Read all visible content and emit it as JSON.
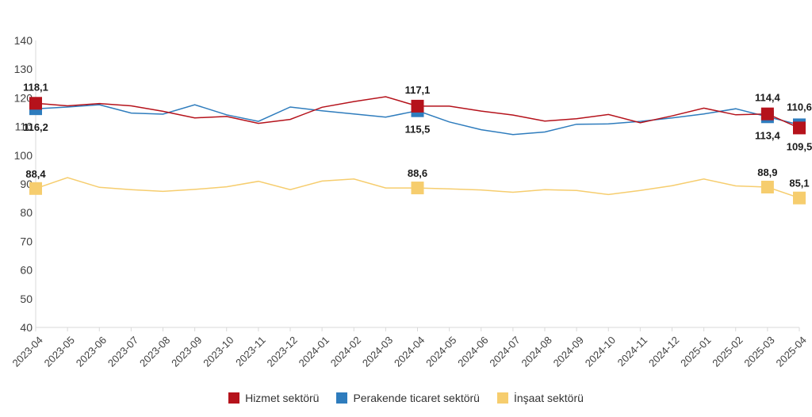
{
  "chart_data": {
    "type": "line",
    "categories": [
      "2023-04",
      "2023-05",
      "2023-06",
      "2023-07",
      "2023-08",
      "2023-09",
      "2023-10",
      "2023-11",
      "2023-12",
      "2024-01",
      "2024-02",
      "2024-03",
      "2024-04",
      "2024-05",
      "2024-06",
      "2024-07",
      "2024-08",
      "2024-09",
      "2024-10",
      "2024-11",
      "2024-12",
      "2025-01",
      "2025-02",
      "2025-03",
      "2025-04"
    ],
    "ylim": [
      40,
      140
    ],
    "yticks": [
      40,
      50,
      60,
      70,
      80,
      90,
      100,
      110,
      120,
      130,
      140
    ],
    "grid": false,
    "legend_position": "bottom",
    "series": [
      {
        "name": "Hizmet sektörü",
        "color": "#b5121b",
        "values": [
          118.1,
          117.2,
          118.0,
          117.2,
          115.3,
          113.0,
          113.5,
          111.1,
          112.5,
          116.7,
          118.7,
          120.4,
          117.1,
          117.1,
          115.4,
          114.0,
          111.9,
          112.7,
          114.2,
          111.3,
          113.7,
          116.4,
          114.1,
          114.4,
          109.5
        ],
        "labels": {
          "0": "118,1",
          "12": "117,1",
          "23": "114,4",
          "24": "109,5"
        }
      },
      {
        "name": "Perakende ticaret sektörü",
        "color": "#2e7cbd",
        "values": [
          116.2,
          116.8,
          117.6,
          114.7,
          114.3,
          117.6,
          114.1,
          111.8,
          116.8,
          115.5,
          114.4,
          113.3,
          115.5,
          111.6,
          108.9,
          107.2,
          108.1,
          110.8,
          110.9,
          111.8,
          113.0,
          114.4,
          116.2,
          113.4,
          110.6
        ],
        "labels": {
          "0": "116,2",
          "12": "115,5",
          "23": "113,4",
          "24": "110,6"
        }
      },
      {
        "name": "İnşaat sektörü",
        "color": "#f6cd6e",
        "values": [
          88.4,
          92.2,
          88.8,
          88.0,
          87.4,
          88.1,
          89.0,
          90.9,
          88.0,
          91.0,
          91.7,
          88.6,
          88.6,
          88.3,
          87.9,
          87.1,
          88.0,
          87.7,
          86.3,
          87.7,
          89.4,
          91.7,
          89.3,
          88.9,
          85.1
        ],
        "labels": {
          "0": "88,4",
          "12": "88,6",
          "23": "88,9",
          "24": "85,1"
        }
      }
    ]
  }
}
